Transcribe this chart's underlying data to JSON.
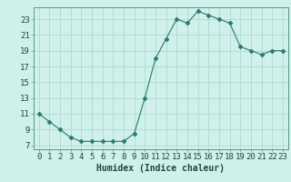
{
  "x": [
    0,
    1,
    2,
    3,
    4,
    5,
    6,
    7,
    8,
    9,
    10,
    11,
    12,
    13,
    14,
    15,
    16,
    17,
    18,
    19,
    20,
    21,
    22,
    23
  ],
  "y": [
    11,
    10,
    9,
    8,
    7.5,
    7.5,
    7.5,
    7.5,
    7.5,
    8.5,
    13,
    18,
    20.5,
    23,
    22.5,
    24,
    23.5,
    23,
    22.5,
    19.5,
    19,
    18.5,
    19,
    19
  ],
  "line_color": "#2a7a6a",
  "marker": "D",
  "marker_size": 2.5,
  "bg_color": "#cff0eb",
  "grid_color": "#aad4cc",
  "xlabel": "Humidex (Indice chaleur)",
  "xlim": [
    -0.5,
    23.5
  ],
  "ylim": [
    6.5,
    24.5
  ],
  "yticks": [
    7,
    9,
    11,
    13,
    15,
    17,
    19,
    21,
    23
  ],
  "xticks": [
    0,
    1,
    2,
    3,
    4,
    5,
    6,
    7,
    8,
    9,
    10,
    11,
    12,
    13,
    14,
    15,
    16,
    17,
    18,
    19,
    20,
    21,
    22,
    23
  ],
  "font_size_label": 7,
  "font_size_tick": 6.5
}
